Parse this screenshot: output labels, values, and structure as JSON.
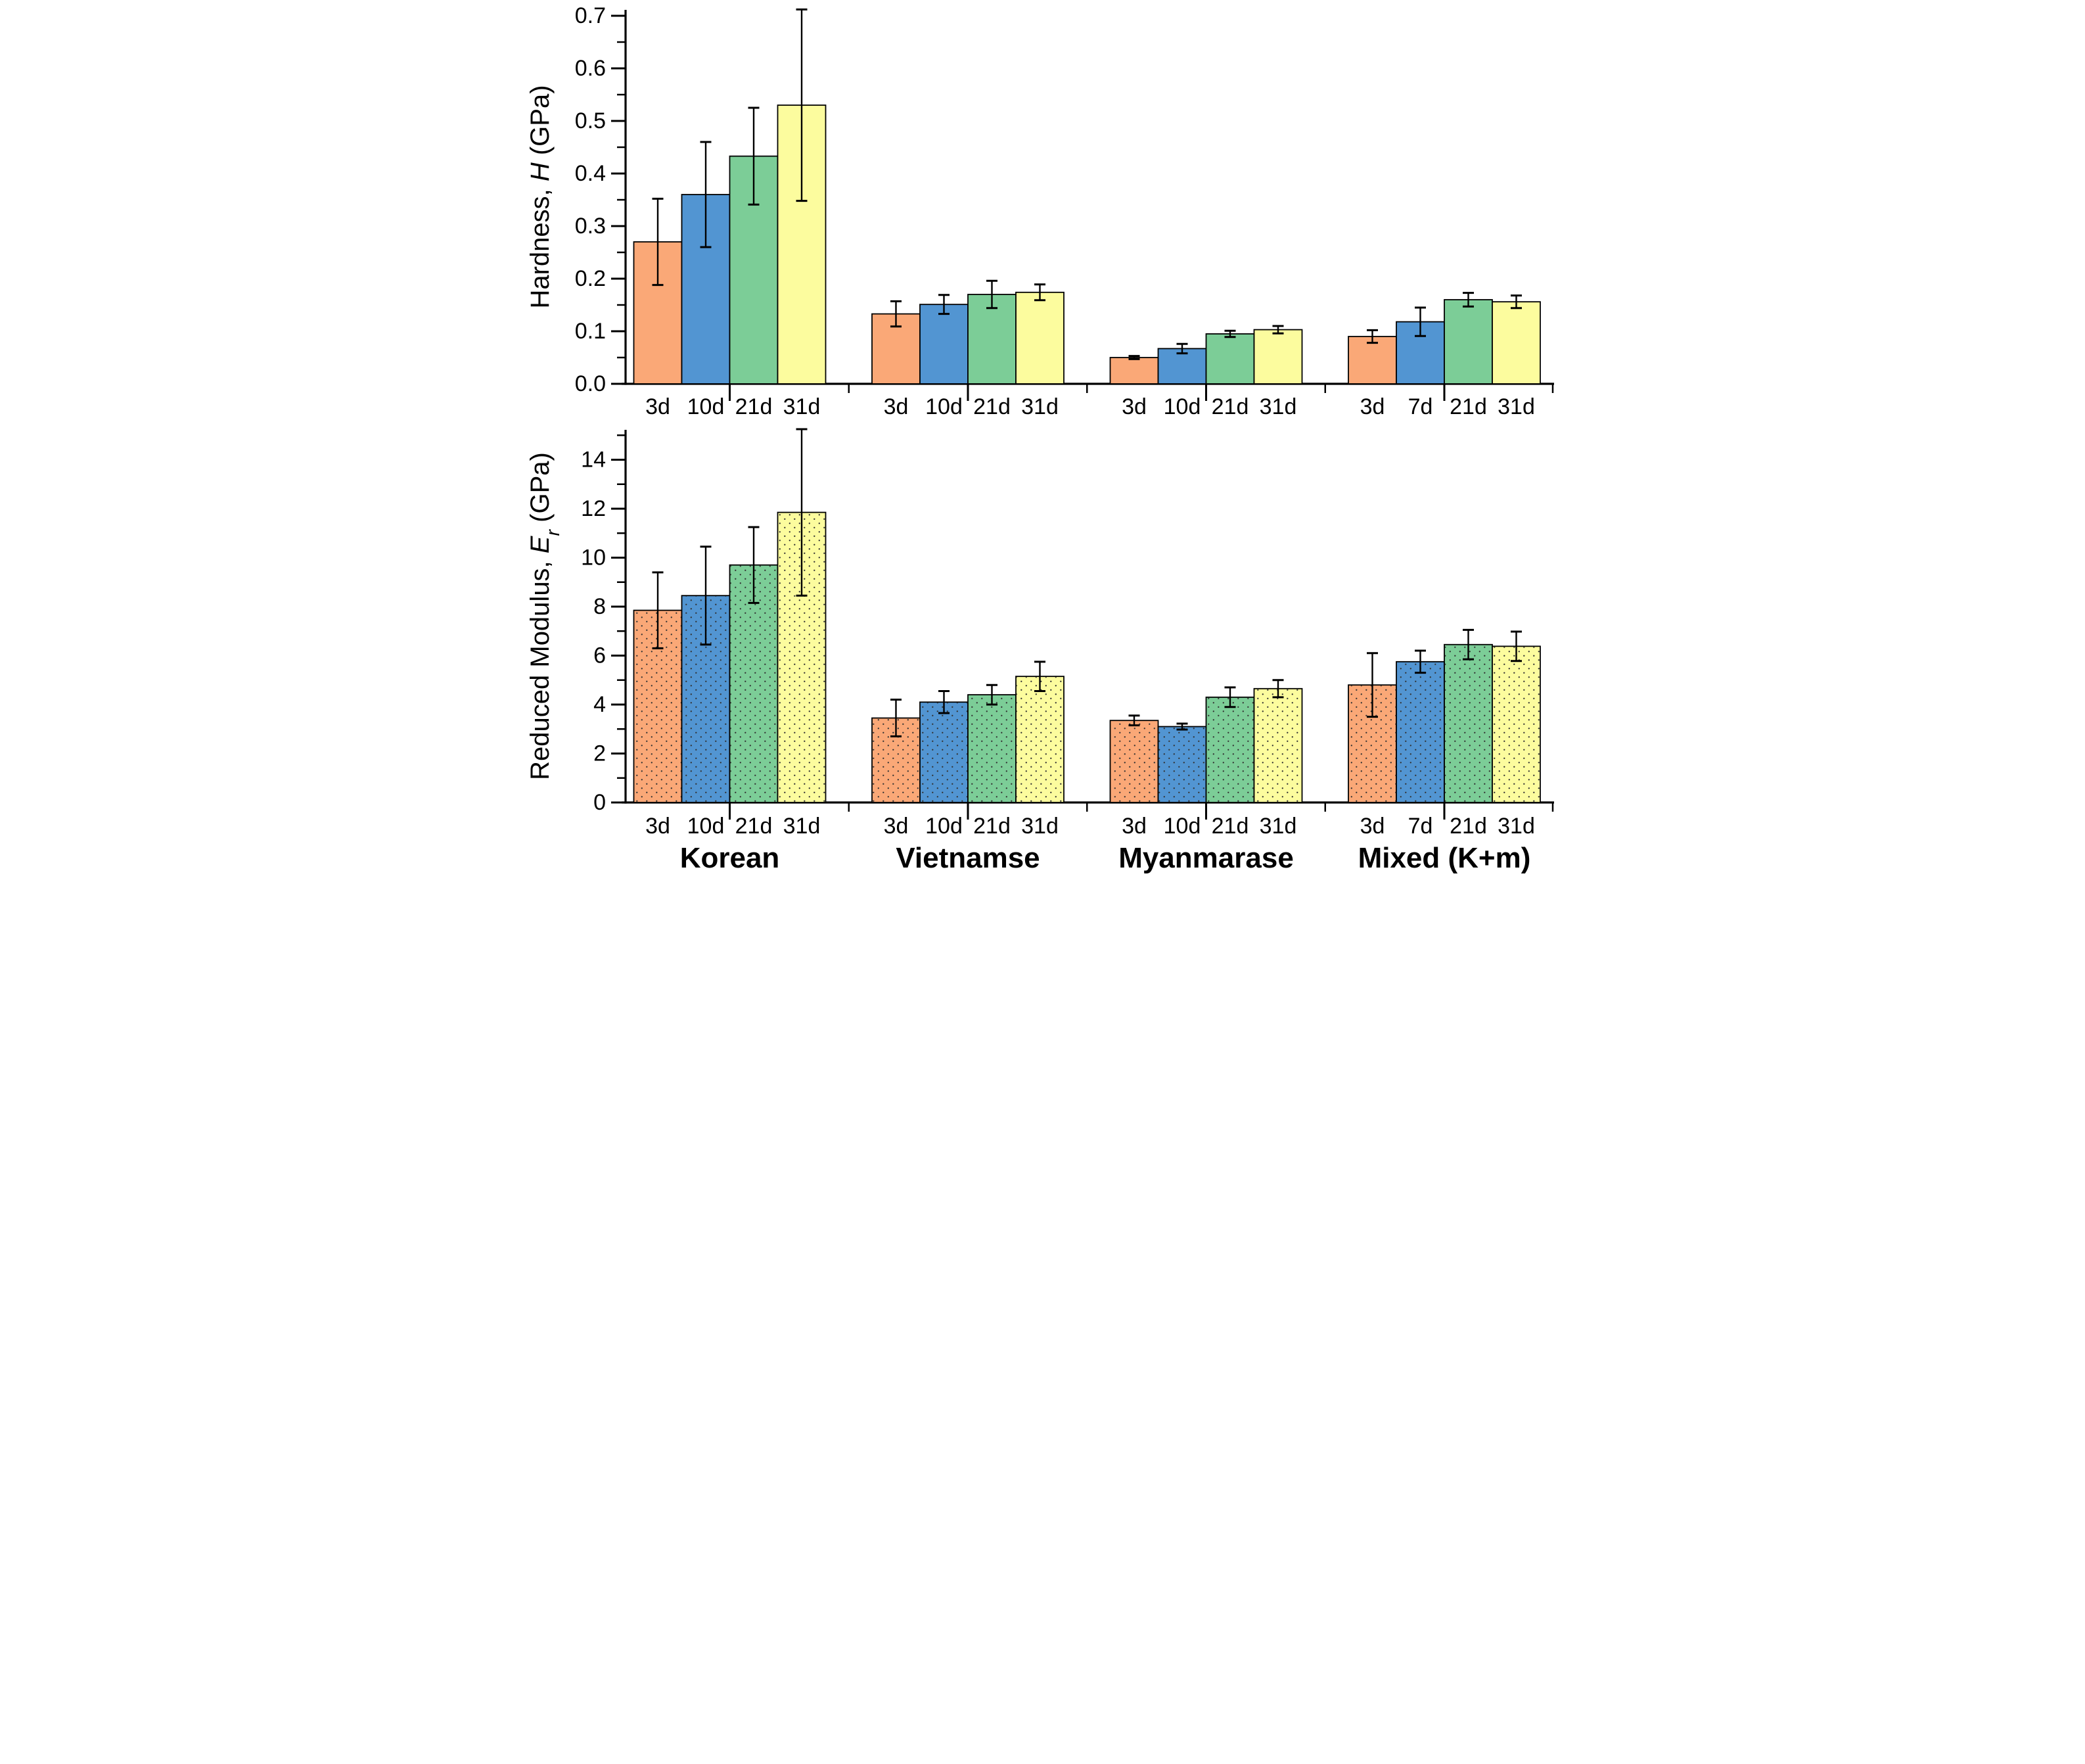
{
  "page": {
    "background_color": "#ffffff"
  },
  "palette": {
    "bar_colors": [
      "#FAA877",
      "#5295D2",
      "#7CCD97",
      "#FCFC9E"
    ],
    "bar_edge_color": "#000000",
    "axis_color": "#000000",
    "error_bar_color": "#000000",
    "dot_pattern_color": "#333333"
  },
  "chart_data": [
    {
      "type": "bar",
      "panel": "top",
      "title": "",
      "xlabel": "",
      "ylabel_plain": "Hardness, H (GPa)",
      "ylabel_parts": [
        {
          "text": "Hardness, "
        },
        {
          "text": "H",
          "italic": true
        },
        {
          "text": " (GPa)"
        }
      ],
      "ylim": [
        0,
        0.7
      ],
      "ytick_step": 0.1,
      "yminor_step": 0.05,
      "ytick_labels": [
        "0.0",
        "0.1",
        "0.2",
        "0.3",
        "0.4",
        "0.5",
        "0.6",
        "0.7"
      ],
      "grid": false,
      "legend_position": "none",
      "bar_fill_style": "solid",
      "show_group_labels": false,
      "groups": [
        {
          "label": "Korean",
          "categories": [
            "3d",
            "10d",
            "21d",
            "31d"
          ],
          "values": [
            0.27,
            0.36,
            0.433,
            0.53
          ],
          "errors": [
            0.082,
            0.1,
            0.092,
            0.182
          ]
        },
        {
          "label": "Vietnamse",
          "categories": [
            "3d",
            "10d",
            "21d",
            "31d"
          ],
          "values": [
            0.133,
            0.151,
            0.17,
            0.174
          ],
          "errors": [
            0.024,
            0.018,
            0.026,
            0.015
          ]
        },
        {
          "label": "Myanmarase",
          "categories": [
            "3d",
            "10d",
            "21d",
            "31d"
          ],
          "values": [
            0.05,
            0.067,
            0.095,
            0.103
          ],
          "errors": [
            0.003,
            0.009,
            0.006,
            0.007
          ]
        },
        {
          "label": "Mixed (K+m)",
          "categories": [
            "3d",
            "7d",
            "21d",
            "31d"
          ],
          "values": [
            0.09,
            0.118,
            0.16,
            0.156
          ],
          "errors": [
            0.012,
            0.027,
            0.013,
            0.012
          ]
        }
      ]
    },
    {
      "type": "bar",
      "panel": "bottom",
      "title": "",
      "xlabel": "",
      "ylabel_plain": "Reduced Modulus, Er (GPa)",
      "ylabel_parts": [
        {
          "text": "Reduced Modulus, "
        },
        {
          "text": "E",
          "italic": true
        },
        {
          "text": "r",
          "italic": true,
          "sub": true
        },
        {
          "text": " (GPa)"
        }
      ],
      "ylim": [
        0,
        14
      ],
      "ytick_step": 2,
      "yminor_step": 1,
      "ytick_labels": [
        "0",
        "2",
        "4",
        "6",
        "8",
        "10",
        "12",
        "14"
      ],
      "grid": false,
      "legend_position": "none",
      "bar_fill_style": "dotted",
      "show_group_labels": true,
      "groups": [
        {
          "label": "Korean",
          "categories": [
            "3d",
            "10d",
            "21d",
            "31d"
          ],
          "values": [
            7.85,
            8.45,
            9.7,
            11.85
          ],
          "errors": [
            1.55,
            2.0,
            1.55,
            3.4
          ]
        },
        {
          "label": "Vietnamse",
          "categories": [
            "3d",
            "10d",
            "21d",
            "31d"
          ],
          "values": [
            3.45,
            4.1,
            4.4,
            5.15
          ],
          "errors": [
            0.75,
            0.45,
            0.4,
            0.6
          ]
        },
        {
          "label": "Myanmarase",
          "categories": [
            "3d",
            "10d",
            "21d",
            "31d"
          ],
          "values": [
            3.35,
            3.1,
            4.3,
            4.65
          ],
          "errors": [
            0.2,
            0.12,
            0.4,
            0.35
          ]
        },
        {
          "label": "Mixed (K+m)",
          "categories": [
            "3d",
            "7d",
            "21d",
            "31d"
          ],
          "values": [
            4.8,
            5.75,
            6.45,
            6.38
          ],
          "errors": [
            1.3,
            0.45,
            0.6,
            0.6
          ]
        }
      ]
    }
  ]
}
